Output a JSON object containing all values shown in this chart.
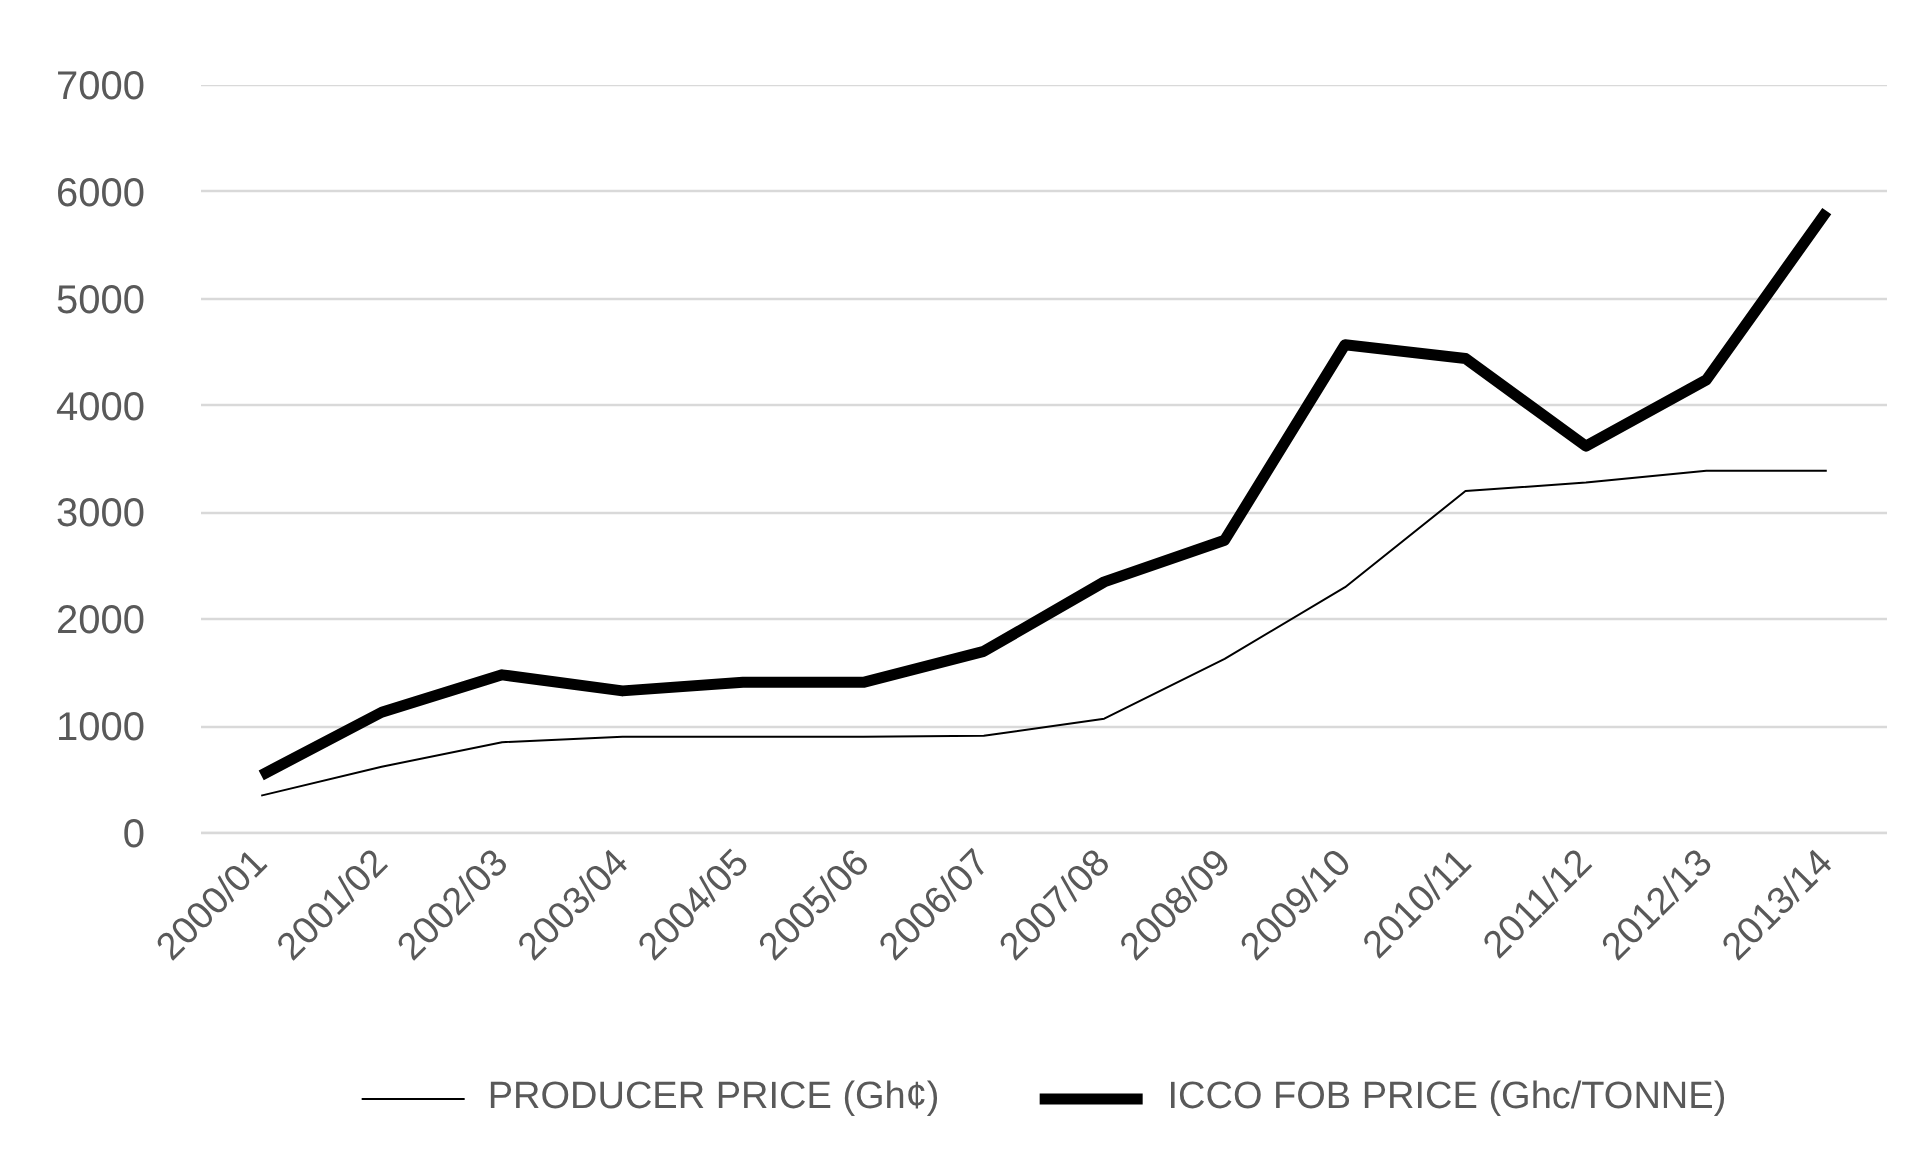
{
  "chart_data": {
    "type": "line",
    "categories": [
      "2000/01",
      "2001/02",
      "2002/03",
      "2003/04",
      "2004/05",
      "2005/06",
      "2006/07",
      "2007/08",
      "2008/09",
      "2009/10",
      "2010/11",
      "2011/12",
      "2012/13",
      "2013/14"
    ],
    "series": [
      {
        "name": "PRODUCER PRICE (Gh¢)",
        "color": "#000000",
        "values": [
          350,
          620,
          850,
          900,
          900,
          900,
          910,
          1070,
          1630,
          2300,
          3200,
          3280,
          3390,
          3390
        ]
      },
      {
        "name": "ICCO FOB PRICE (Ghc/TONNE)",
        "color": "#000000",
        "values": [
          540,
          1130,
          1480,
          1330,
          1410,
          1410,
          1700,
          2350,
          2740,
          4570,
          4440,
          3620,
          4240,
          5820
        ]
      }
    ],
    "ylim": [
      0,
      7000
    ],
    "yticks": [
      0,
      1000,
      2000,
      3000,
      4000,
      5000,
      6000,
      7000
    ],
    "grid": "y",
    "legend": "bottom",
    "line_style": "solid"
  }
}
